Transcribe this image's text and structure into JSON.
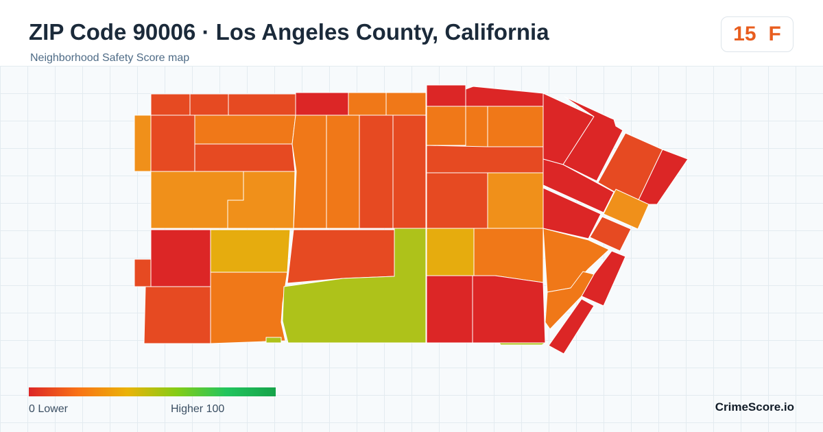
{
  "header": {
    "title": "ZIP Code 90006 · Los Angeles County, California",
    "subtitle": "Neighborhood Safety Score map"
  },
  "score": {
    "value": "15",
    "grade": "F",
    "color": "#e85d1e"
  },
  "legend": {
    "min_label": "0  Lower",
    "max_label": "Higher  100",
    "colors": [
      "#dc2626",
      "#f97316",
      "#eab308",
      "#84cc16",
      "#22c55e",
      "#16a34a"
    ]
  },
  "brand": "CrimeScore.io",
  "palette": {
    "red": "#dc2626",
    "red_orange": "#e64a22",
    "orange": "#f07818",
    "amber": "#f0901a",
    "yellow": "#e6ac0e",
    "yellow_green": "#aec21a"
  }
}
